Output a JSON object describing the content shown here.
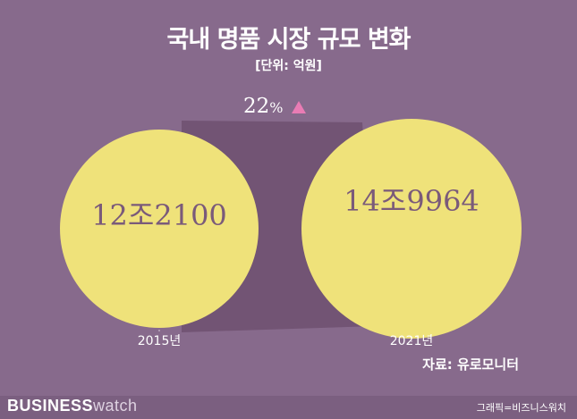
{
  "title": "국내 명품 시장 규모 변화",
  "unit": "[단위: 억원]",
  "source": "자료: 유로모니터",
  "logo": {
    "business": "BUSINESS",
    "watch": "watch"
  },
  "credit": "그래픽=비즈니스워치",
  "colors": {
    "background": "#876a8c",
    "circle": "#efe27a",
    "connector": "#6e5070",
    "value_text": "#7a5a7a",
    "arrow": "#e97cb4",
    "text": "#ffffff"
  },
  "chart_data": {
    "type": "bubble",
    "categories": [
      "2015년",
      "2021년"
    ],
    "values": [
      122100,
      149964
    ],
    "value_labels": [
      "12조2100",
      "14조9964"
    ],
    "change_label": {
      "number": "22",
      "unit": "%"
    },
    "change_direction": "up"
  }
}
